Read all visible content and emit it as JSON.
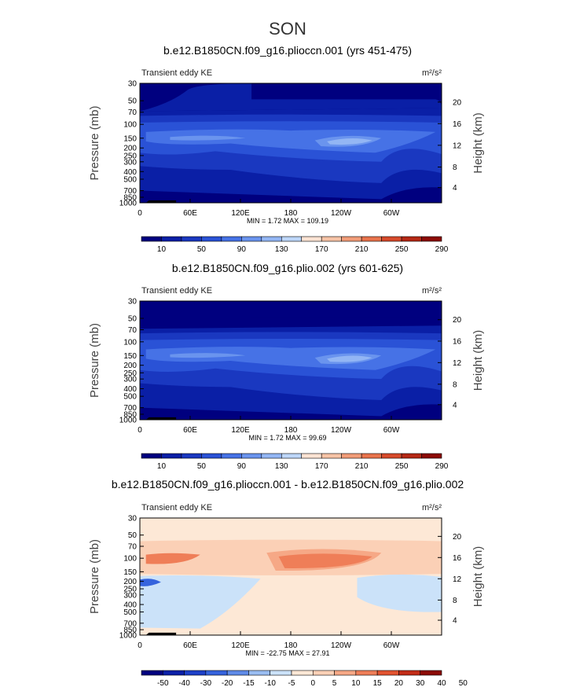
{
  "figure": {
    "title": "SON"
  },
  "palettes": {
    "ke": [
      "#00007f",
      "#0a1fa6",
      "#1a38c0",
      "#2a52d6",
      "#4672e6",
      "#6a94ee",
      "#93b6f4",
      "#bdd6f8",
      "#fbe3d3",
      "#f6c3a6",
      "#f19c78",
      "#e8734c",
      "#d64a2b",
      "#b52815",
      "#8c0a05"
    ],
    "diff": [
      "#00007f",
      "#0a20a8",
      "#1d40c8",
      "#3563dd",
      "#5f8be8",
      "#9abdf2",
      "#cbe2f9",
      "#fde8d6",
      "#fbd0b6",
      "#f6a886",
      "#ef7e58",
      "#e25330",
      "#c22c17",
      "#8c0a05"
    ]
  },
  "chart_data": [
    {
      "type": "heatmap",
      "title": "b.e12.B1850CN.f09_g16.plioccn.001 (yrs 451-475)",
      "left_label": "Transient eddy KE",
      "units": "m²/s²",
      "ylabel": "Pressure (mb)",
      "y2label": "Height (km)",
      "xticks": [
        "0",
        "60E",
        "120E",
        "180",
        "120W",
        "60W"
      ],
      "yticks": [
        "30",
        "50",
        "70",
        "100",
        "150",
        "200",
        "250",
        "300",
        "400",
        "500",
        "700",
        "850",
        "1000"
      ],
      "y2ticks": [
        "20",
        "16",
        "12",
        "8",
        "4"
      ],
      "min_label": "MIN =",
      "min_value": "1.72",
      "max_label": "MAX =",
      "max_value": "109.19",
      "colorbar_labels": [
        "10",
        "50",
        "90",
        "130",
        "170",
        "210",
        "250",
        "290"
      ],
      "palette": "ke"
    },
    {
      "type": "heatmap",
      "title": "b.e12.B1850CN.f09_g16.plio.002 (yrs 601-625)",
      "left_label": "Transient eddy KE",
      "units": "m²/s²",
      "ylabel": "Pressure (mb)",
      "y2label": "Height (km)",
      "xticks": [
        "0",
        "60E",
        "120E",
        "180",
        "120W",
        "60W"
      ],
      "yticks": [
        "30",
        "50",
        "70",
        "100",
        "150",
        "200",
        "250",
        "300",
        "400",
        "500",
        "700",
        "850",
        "1000"
      ],
      "y2ticks": [
        "20",
        "16",
        "12",
        "8",
        "4"
      ],
      "min_label": "MIN =",
      "min_value": "1.72",
      "max_label": "MAX =",
      "max_value": "99.69",
      "colorbar_labels": [
        "10",
        "50",
        "90",
        "130",
        "170",
        "210",
        "250",
        "290"
      ],
      "palette": "ke"
    },
    {
      "type": "heatmap",
      "title": "b.e12.B1850CN.f09_g16.plioccn.001 - b.e12.B1850CN.f09_g16.plio.002",
      "left_label": "Transient eddy KE",
      "units": "m²/s²",
      "ylabel": "Pressure (mb)",
      "y2label": "Height (km)",
      "xticks": [
        "0",
        "60E",
        "120E",
        "180",
        "120W",
        "60W"
      ],
      "yticks": [
        "30",
        "50",
        "70",
        "100",
        "150",
        "200",
        "250",
        "300",
        "400",
        "500",
        "700",
        "850",
        "1000"
      ],
      "y2ticks": [
        "20",
        "16",
        "12",
        "8",
        "4"
      ],
      "min_label": "MIN =",
      "min_value": "-22.75",
      "max_label": "MAX =",
      "max_value": "27.91",
      "colorbar_labels": [
        "-50",
        "-40",
        "-30",
        "-20",
        "-15",
        "-10",
        "-5",
        "0",
        "5",
        "10",
        "15",
        "20",
        "30",
        "40",
        "50"
      ],
      "palette": "diff"
    }
  ]
}
